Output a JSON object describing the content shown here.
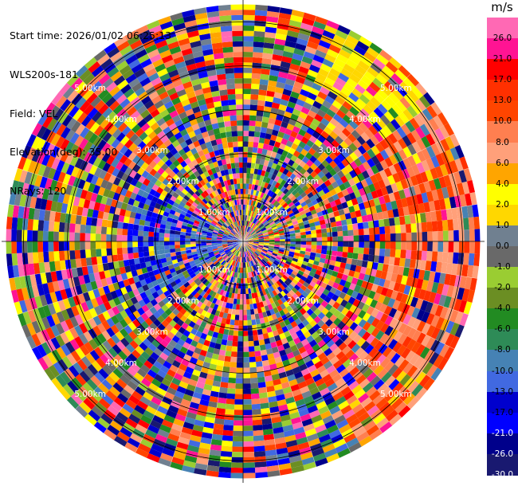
{
  "info": {
    "start_time": "Start time: 2026/01/02 06:25:13",
    "instrument": "WLS200s-181",
    "field": "Field: VEL",
    "elevation": "Elevation(deg): 35.00",
    "nrays": "NRays: 120"
  },
  "colorbar": {
    "unit": "m/s",
    "ticks": [
      "26.0",
      "21.0",
      "17.0",
      "13.0",
      "10.0",
      "8.0",
      "6.0",
      "4.0",
      "2.0",
      "1.0",
      "0.0",
      "-1.0",
      "-2.0",
      "-4.0",
      "-6.0",
      "-8.0",
      "-10.0",
      "-13.0",
      "-17.0",
      "-21.0",
      "-26.0",
      "-30.0"
    ],
    "colors": [
      "#ff69b4",
      "#ff1493",
      "#ff0000",
      "#ff3000",
      "#ff4500",
      "#ff7f50",
      "#ffa07a",
      "#ffa500",
      "#ffff00",
      "#ffd700",
      "#708090",
      "#696969",
      "#9acd32",
      "#6b8e23",
      "#228b22",
      "#2e8b57",
      "#4682b4",
      "#4169e1",
      "#0000cd",
      "#0000ff",
      "#00008b",
      "#191970"
    ]
  },
  "chart_data": {
    "type": "heatmap",
    "projection": "polar-ppi",
    "field": "VEL",
    "units": "m/s",
    "n_rays": 120,
    "max_range_km": 5.5,
    "range_rings_km": [
      1,
      2,
      3,
      4,
      5
    ],
    "ring_labels": [
      "1.00km",
      "2.00km",
      "3.00km",
      "4.00km",
      "5.00km"
    ],
    "value_range": [
      -30,
      30
    ],
    "patterns": {
      "blue_region_azimuth_deg": [
        235,
        300
      ],
      "orange_red_region_azimuth_deg": [
        40,
        150
      ],
      "yellow_region_azimuth_deg": [
        25,
        55
      ]
    }
  }
}
